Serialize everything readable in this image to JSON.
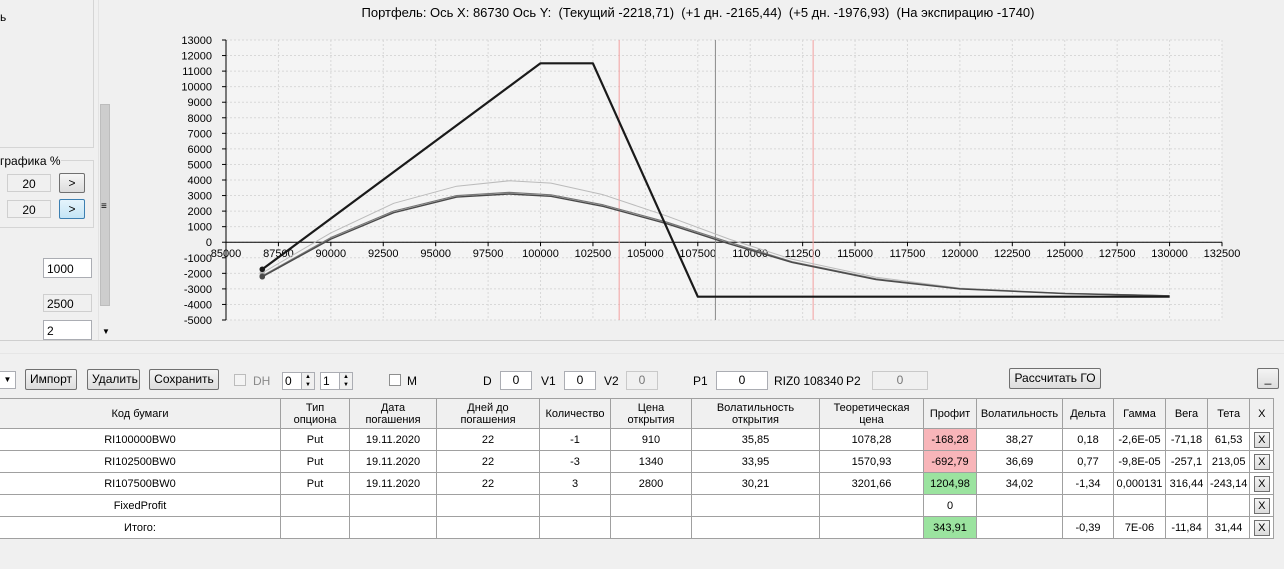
{
  "left_panel": {
    "top_fragment": "ь",
    "chart_label_fragment": "графика %",
    "field1": "20",
    "field2": "20",
    "field3": "1000",
    "field4": "2500",
    "field5": "2",
    "arrow_btn": ">"
  },
  "chart_title": "Портфель: Ось X: 86730 Ось Y:  (Текущий -2218,71)  (+1 дн. -2165,44)  (+5 дн. -1976,93)  (На экспирацию -1740)",
  "chart_data": {
    "type": "line",
    "title": "Портфель: Ось X: 86730 Ось Y:  (Текущий -2218,71)  (+1 дн. -2165,44)  (+5 дн. -1976,93)  (На экспирацию -1740)",
    "xlim": [
      85000,
      132500
    ],
    "ylim": [
      -5000,
      13000
    ],
    "x_ticks": [
      85000,
      87500,
      90000,
      92500,
      95000,
      97500,
      100000,
      102500,
      105000,
      107500,
      110000,
      112500,
      115000,
      117500,
      120000,
      122500,
      125000,
      127500,
      130000,
      132500
    ],
    "y_ticks": [
      13000,
      12000,
      11000,
      10000,
      9000,
      8000,
      7000,
      6000,
      5000,
      4000,
      3000,
      2000,
      1000,
      0,
      -1000,
      -2000,
      -3000,
      -4000,
      -5000
    ],
    "vlines": [
      {
        "x": 103750,
        "color": "#f3a0a0"
      },
      {
        "x": 108340,
        "color": "#8a8a8a"
      },
      {
        "x": 113000,
        "color": "#f3a0a0"
      }
    ],
    "series": [
      {
        "x": [
          86730,
          100000,
          102500,
          107500,
          130000
        ],
        "y": [
          -1740,
          11500,
          11500,
          -3500,
          -3500
        ],
        "color": "#1a1a1a",
        "width": 2.2
      },
      {
        "x": [
          86730,
          90000,
          93000,
          96000,
          98500,
          100500,
          103000,
          106000,
          109000,
          112000,
          116000,
          120000,
          125000,
          130000
        ],
        "y": [
          -2218,
          200,
          1900,
          2900,
          3100,
          2950,
          2300,
          1200,
          -100,
          -1300,
          -2400,
          -3000,
          -3300,
          -3450
        ],
        "color": "#4a4a4a",
        "width": 1.4
      },
      {
        "x": [
          86730,
          90000,
          93000,
          96000,
          98500,
          100500,
          103000,
          106000,
          109000,
          112000,
          116000,
          120000,
          125000,
          130000
        ],
        "y": [
          -2165,
          300,
          2000,
          3000,
          3200,
          3050,
          2400,
          1300,
          0,
          -1250,
          -2350,
          -2980,
          -3290,
          -3440
        ],
        "color": "#777777",
        "width": 1.2
      },
      {
        "x": [
          86730,
          90000,
          93000,
          96000,
          98500,
          100500,
          103000,
          106000,
          109000,
          112000,
          116000,
          120000,
          125000,
          130000
        ],
        "y": [
          -1977,
          600,
          2500,
          3600,
          3950,
          3800,
          3050,
          1700,
          200,
          -1100,
          -2250,
          -2950,
          -3280,
          -3430
        ],
        "color": "#bbbbbb",
        "width": 1.0
      }
    ]
  },
  "toolbar": {
    "import": "Импорт",
    "delete": "Удалить",
    "save": "Сохранить",
    "dh_label": "DH",
    "dh_spin1": "0",
    "dh_spin2": "1",
    "m_label": "M",
    "d_label": "D",
    "d_value": "0",
    "v1_label": "V1",
    "v1_value": "0",
    "v2_label": "V2",
    "v2_value": "0",
    "p1_label": "P1",
    "p1_value": "0",
    "riz_label": "RIZ0 108340",
    "p2_label": "P2",
    "p2_value": "0",
    "calc_go": "Рассчитать ГО",
    "minimize": "_"
  },
  "table": {
    "headers": [
      "Код бумаги",
      "Тип опциона",
      "Дата погашения",
      "Дней до погашения",
      "Количество",
      "Цена открытия",
      "Волатильность открытия",
      "Теоретическая цена",
      "Профит",
      "Волатильность",
      "Дельта",
      "Гамма",
      "Вега",
      "Тета",
      "X"
    ],
    "rows": [
      [
        "RI100000BW0",
        "Put",
        "19.11.2020",
        "22",
        "-1",
        "910",
        "35,85",
        "1078,28",
        "-168,28",
        "38,27",
        "0,18",
        "-2,6E-05",
        "-71,18",
        "61,53",
        "X"
      ],
      [
        "RI102500BW0",
        "Put",
        "19.11.2020",
        "22",
        "-3",
        "1340",
        "33,95",
        "1570,93",
        "-692,79",
        "36,69",
        "0,77",
        "-9,8E-05",
        "-257,1",
        "213,05",
        "X"
      ],
      [
        "RI107500BW0",
        "Put",
        "19.11.2020",
        "22",
        "3",
        "2800",
        "30,21",
        "3201,66",
        "1204,98",
        "34,02",
        "-1,34",
        "0,000131",
        "316,44",
        "-243,14",
        "X"
      ],
      [
        "FixedProfit",
        "",
        "",
        "",
        "",
        "",
        "",
        "",
        "0",
        "",
        "",
        "",
        "",
        "",
        "X"
      ],
      [
        "Итого:",
        "",
        "",
        "",
        "",
        "",
        "",
        "",
        "343,91",
        "",
        "-0,39",
        "7E-06",
        "-11,84",
        "31,44",
        "X"
      ]
    ],
    "profit_status": [
      "neg",
      "neg",
      "pos",
      "",
      "pos"
    ]
  }
}
